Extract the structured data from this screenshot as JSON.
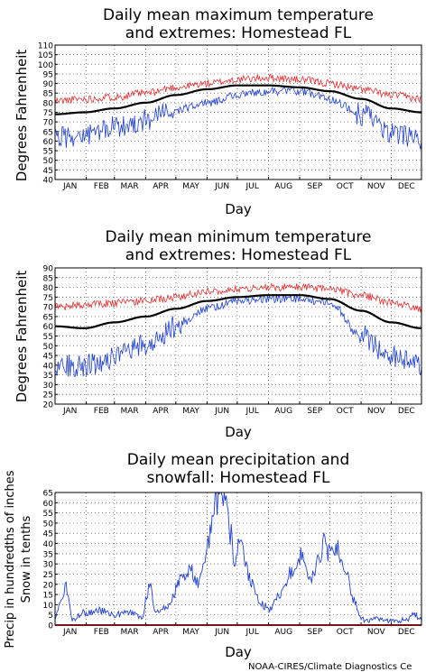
{
  "credit": "NOAA-CIRES/Climate Diagnostics Ce",
  "months": [
    "JAN",
    "FEB",
    "MAR",
    "APR",
    "MAY",
    "JUN",
    "JUL",
    "AUG",
    "SEP",
    "OCT",
    "NOV",
    "DEC"
  ],
  "chart_data": [
    {
      "type": "line",
      "title": [
        "Daily mean maximum temperature",
        "and extremes: Homestead FL"
      ],
      "xlabel": "Day",
      "ylabel": [
        "Degrees Fahrenheit"
      ],
      "ylim": [
        40,
        110
      ],
      "yticks": [
        40,
        45,
        50,
        55,
        60,
        65,
        70,
        75,
        80,
        85,
        90,
        95,
        100,
        105,
        110
      ],
      "grid": true,
      "colors": {
        "mean": "#000000",
        "high": "#e03030",
        "low": "#2040d0"
      },
      "mean_anchors": {
        "x": [
          1,
          30,
          60,
          91,
          121,
          152,
          182,
          213,
          244,
          274,
          305,
          335,
          365
        ],
        "y": [
          74,
          75,
          77,
          80,
          84,
          87,
          89,
          89,
          88,
          86,
          82,
          77,
          75
        ]
      },
      "high_anchors": {
        "x": [
          1,
          30,
          60,
          91,
          121,
          152,
          182,
          213,
          244,
          274,
          305,
          335,
          365
        ],
        "y": [
          81,
          82,
          83,
          85,
          88,
          90,
          92,
          93,
          92,
          90,
          87,
          84,
          82
        ]
      },
      "low_anchors": {
        "x": [
          1,
          30,
          60,
          91,
          121,
          152,
          182,
          213,
          244,
          274,
          305,
          335,
          365
        ],
        "y": [
          62,
          63,
          67,
          71,
          76,
          80,
          84,
          86,
          86,
          82,
          74,
          64,
          60
        ]
      }
    },
    {
      "type": "line",
      "title": [
        "Daily mean minimum temperature",
        "and extremes: Homestead FL"
      ],
      "xlabel": "Day",
      "ylabel": [
        "Degrees Fahrenheit"
      ],
      "ylim": [
        20,
        90
      ],
      "yticks": [
        20,
        25,
        30,
        35,
        40,
        45,
        50,
        55,
        60,
        65,
        70,
        75,
        80,
        85,
        90
      ],
      "grid": true,
      "colors": {
        "mean": "#000000",
        "high": "#e03030",
        "low": "#2040d0"
      },
      "mean_anchors": {
        "x": [
          1,
          30,
          60,
          91,
          121,
          152,
          182,
          213,
          244,
          274,
          305,
          335,
          365
        ],
        "y": [
          60,
          59,
          62,
          65,
          69,
          73,
          75,
          76,
          76,
          74,
          68,
          62,
          59
        ]
      },
      "high_anchors": {
        "x": [
          1,
          30,
          60,
          91,
          121,
          152,
          182,
          213,
          244,
          274,
          305,
          335,
          365
        ],
        "y": [
          70,
          71,
          72,
          73,
          75,
          78,
          79,
          80,
          80,
          79,
          76,
          72,
          69
        ]
      },
      "low_anchors": {
        "x": [
          1,
          30,
          60,
          91,
          121,
          152,
          182,
          213,
          244,
          274,
          305,
          335,
          365
        ],
        "y": [
          40,
          40,
          44,
          50,
          60,
          69,
          73,
          74,
          74,
          72,
          55,
          45,
          40
        ]
      }
    },
    {
      "type": "line",
      "title": [
        "Daily mean precipitation and",
        "snowfall: Homestead FL"
      ],
      "xlabel": "Day",
      "ylabel": [
        "Precip in hundredths of inches",
        "Snow in tenths"
      ],
      "ylim": [
        0,
        65
      ],
      "yticks": [
        0,
        5,
        10,
        15,
        20,
        25,
        30,
        35,
        40,
        45,
        50,
        55,
        60,
        65
      ],
      "grid": true,
      "colors": {
        "precip": "#2040d0",
        "snow": "#e03030"
      },
      "precip_anchors": {
        "x": [
          1,
          6,
          12,
          18,
          30,
          45,
          60,
          75,
          88,
          92,
          96,
          100,
          110,
          118,
          125,
          135,
          143,
          150,
          156,
          160,
          165,
          170,
          175,
          180,
          185,
          195,
          205,
          215,
          225,
          235,
          245,
          255,
          262,
          268,
          275,
          280,
          290,
          300,
          305,
          310,
          320,
          330,
          340,
          350,
          358,
          365
        ],
        "y": [
          3,
          12,
          18,
          3,
          6,
          7,
          5,
          6,
          3,
          15,
          22,
          6,
          8,
          14,
          22,
          27,
          21,
          36,
          46,
          58,
          65,
          60,
          45,
          32,
          40,
          22,
          10,
          8,
          15,
          25,
          34,
          22,
          30,
          40,
          33,
          38,
          25,
          10,
          3,
          2,
          3,
          2,
          2,
          3,
          5,
          3
        ]
      },
      "snow_value": 0
    }
  ]
}
